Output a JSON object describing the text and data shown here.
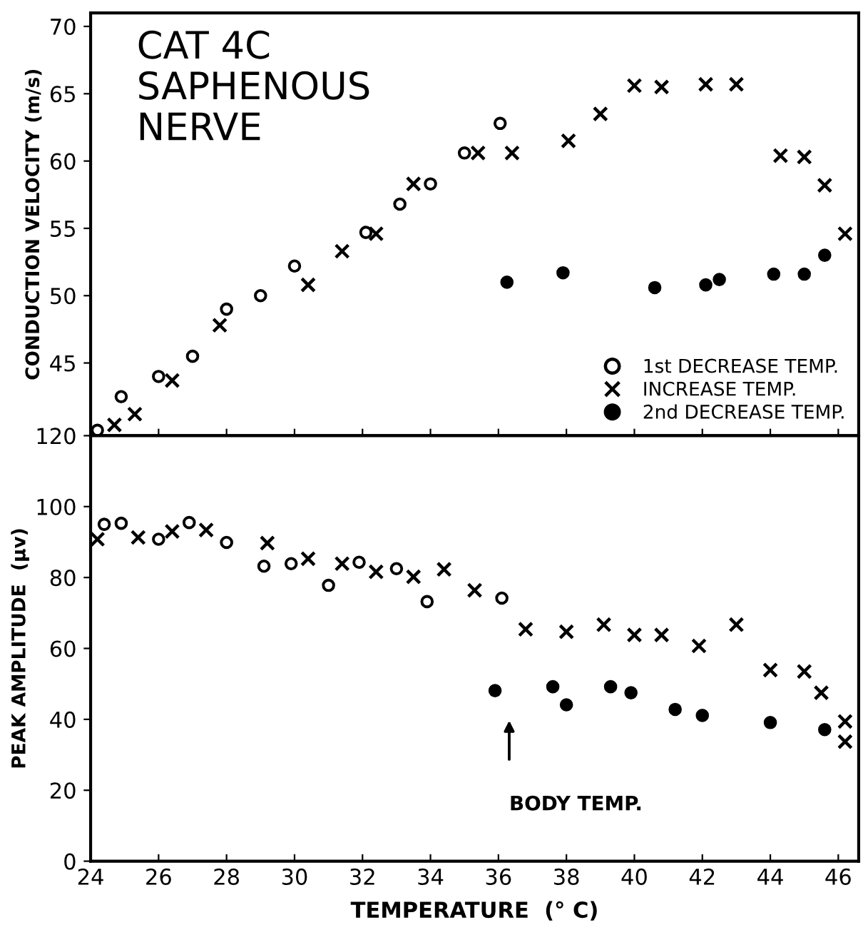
{
  "chart_data": [
    {
      "type": "scatter",
      "title": "CAT 4C\nSAPHENOUS\nNERVE",
      "ylabel": "CONDUCTION VELOCITY (m/s)",
      "xlim": [
        24,
        46.6
      ],
      "xticks": [
        24,
        26,
        28,
        30,
        32,
        34,
        36,
        38,
        40,
        42,
        44,
        46
      ],
      "ylim": [
        39.6,
        71
      ],
      "yticks": [
        45,
        50,
        55,
        60,
        65,
        70
      ],
      "tick_labels": "y",
      "legend": "bottom right",
      "grid": false,
      "series": [
        {
          "name": "1st DECREASE TEMP.",
          "color": "#000000",
          "marker": "circle",
          "x": [
            24.2,
            24.9,
            26.0,
            27.0,
            28.0,
            29.0,
            30.0,
            32.1,
            33.1,
            34.0,
            35.0,
            36.05
          ],
          "values": [
            40.0,
            42.5,
            44.0,
            45.5,
            49.0,
            50.0,
            52.2,
            54.7,
            56.8,
            58.3,
            60.6,
            62.8
          ]
        },
        {
          "name": "INCREASE TEMP.",
          "color": "#000000",
          "marker": "cross",
          "x": [
            24.7,
            25.3,
            26.4,
            27.8,
            30.4,
            31.4,
            32.4,
            33.5,
            35.4,
            36.4,
            38.06,
            39.0,
            40.0,
            40.8,
            42.1,
            43.0,
            44.3,
            45.0,
            45.6,
            46.2
          ],
          "values": [
            40.4,
            41.2,
            43.7,
            47.8,
            50.8,
            53.3,
            54.6,
            58.3,
            60.6,
            60.6,
            61.5,
            63.5,
            65.6,
            65.5,
            65.7,
            65.7,
            60.4,
            60.3,
            58.2,
            54.6
          ]
        },
        {
          "name": "2nd DECREASE TEMP.",
          "color": "#000000",
          "marker": "circle",
          "x": [
            36.25,
            37.9,
            40.6,
            42.1,
            42.5,
            44.1,
            45.0,
            45.6
          ],
          "values": [
            51.0,
            51.7,
            50.6,
            50.8,
            51.2,
            51.6,
            51.6,
            53.0
          ]
        }
      ]
    },
    {
      "type": "scatter",
      "xlabel": "TEMPERATURE  (° C)",
      "ylabel": "PEAK AMPLITUDE  (μv)",
      "xlim": [
        24,
        46.6
      ],
      "xticks": [
        24,
        26,
        28,
        30,
        32,
        34,
        36,
        38,
        40,
        42,
        44,
        46
      ],
      "ylim": [
        0,
        120
      ],
      "yticks": [
        0,
        20,
        40,
        60,
        80,
        100,
        120
      ],
      "grid": false,
      "annotations": [
        "BODY TEMP."
      ],
      "series": [
        {
          "color": "#000000",
          "marker": "circle",
          "x": [
            24.4,
            24.9,
            26.0,
            26.9,
            28.0,
            29.1,
            29.9,
            31.0,
            31.9,
            33.0,
            33.9,
            36.1
          ],
          "values": [
            95.0,
            95.3,
            90.8,
            95.5,
            89.9,
            83.2,
            83.9,
            77.8,
            84.3,
            82.5,
            73.2,
            74.2
          ]
        },
        {
          "color": "#000000",
          "marker": "cross",
          "x": [
            24.2,
            25.4,
            26.4,
            27.4,
            29.2,
            30.4,
            31.4,
            32.4,
            33.5,
            34.4,
            35.3,
            36.8,
            38.0,
            39.1,
            40.0,
            40.8,
            41.9,
            43.0,
            44.0,
            45.0,
            45.5,
            46.2,
            46.2
          ],
          "values": [
            90.8,
            91.3,
            93.0,
            93.4,
            89.7,
            85.3,
            83.9,
            81.6,
            80.2,
            82.3,
            76.4,
            65.4,
            64.7,
            66.7,
            63.8,
            63.8,
            60.7,
            66.7,
            53.9,
            53.5,
            47.5,
            39.4,
            33.7
          ]
        },
        {
          "color": "#000000",
          "marker": "circle",
          "x": [
            35.9,
            37.6,
            38.0,
            39.3,
            39.9,
            41.2,
            42.0,
            44.0,
            45.6
          ],
          "values": [
            48.1,
            49.2,
            44.1,
            49.2,
            47.5,
            42.8,
            41.1,
            39.1,
            37.1
          ]
        }
      ]
    }
  ]
}
